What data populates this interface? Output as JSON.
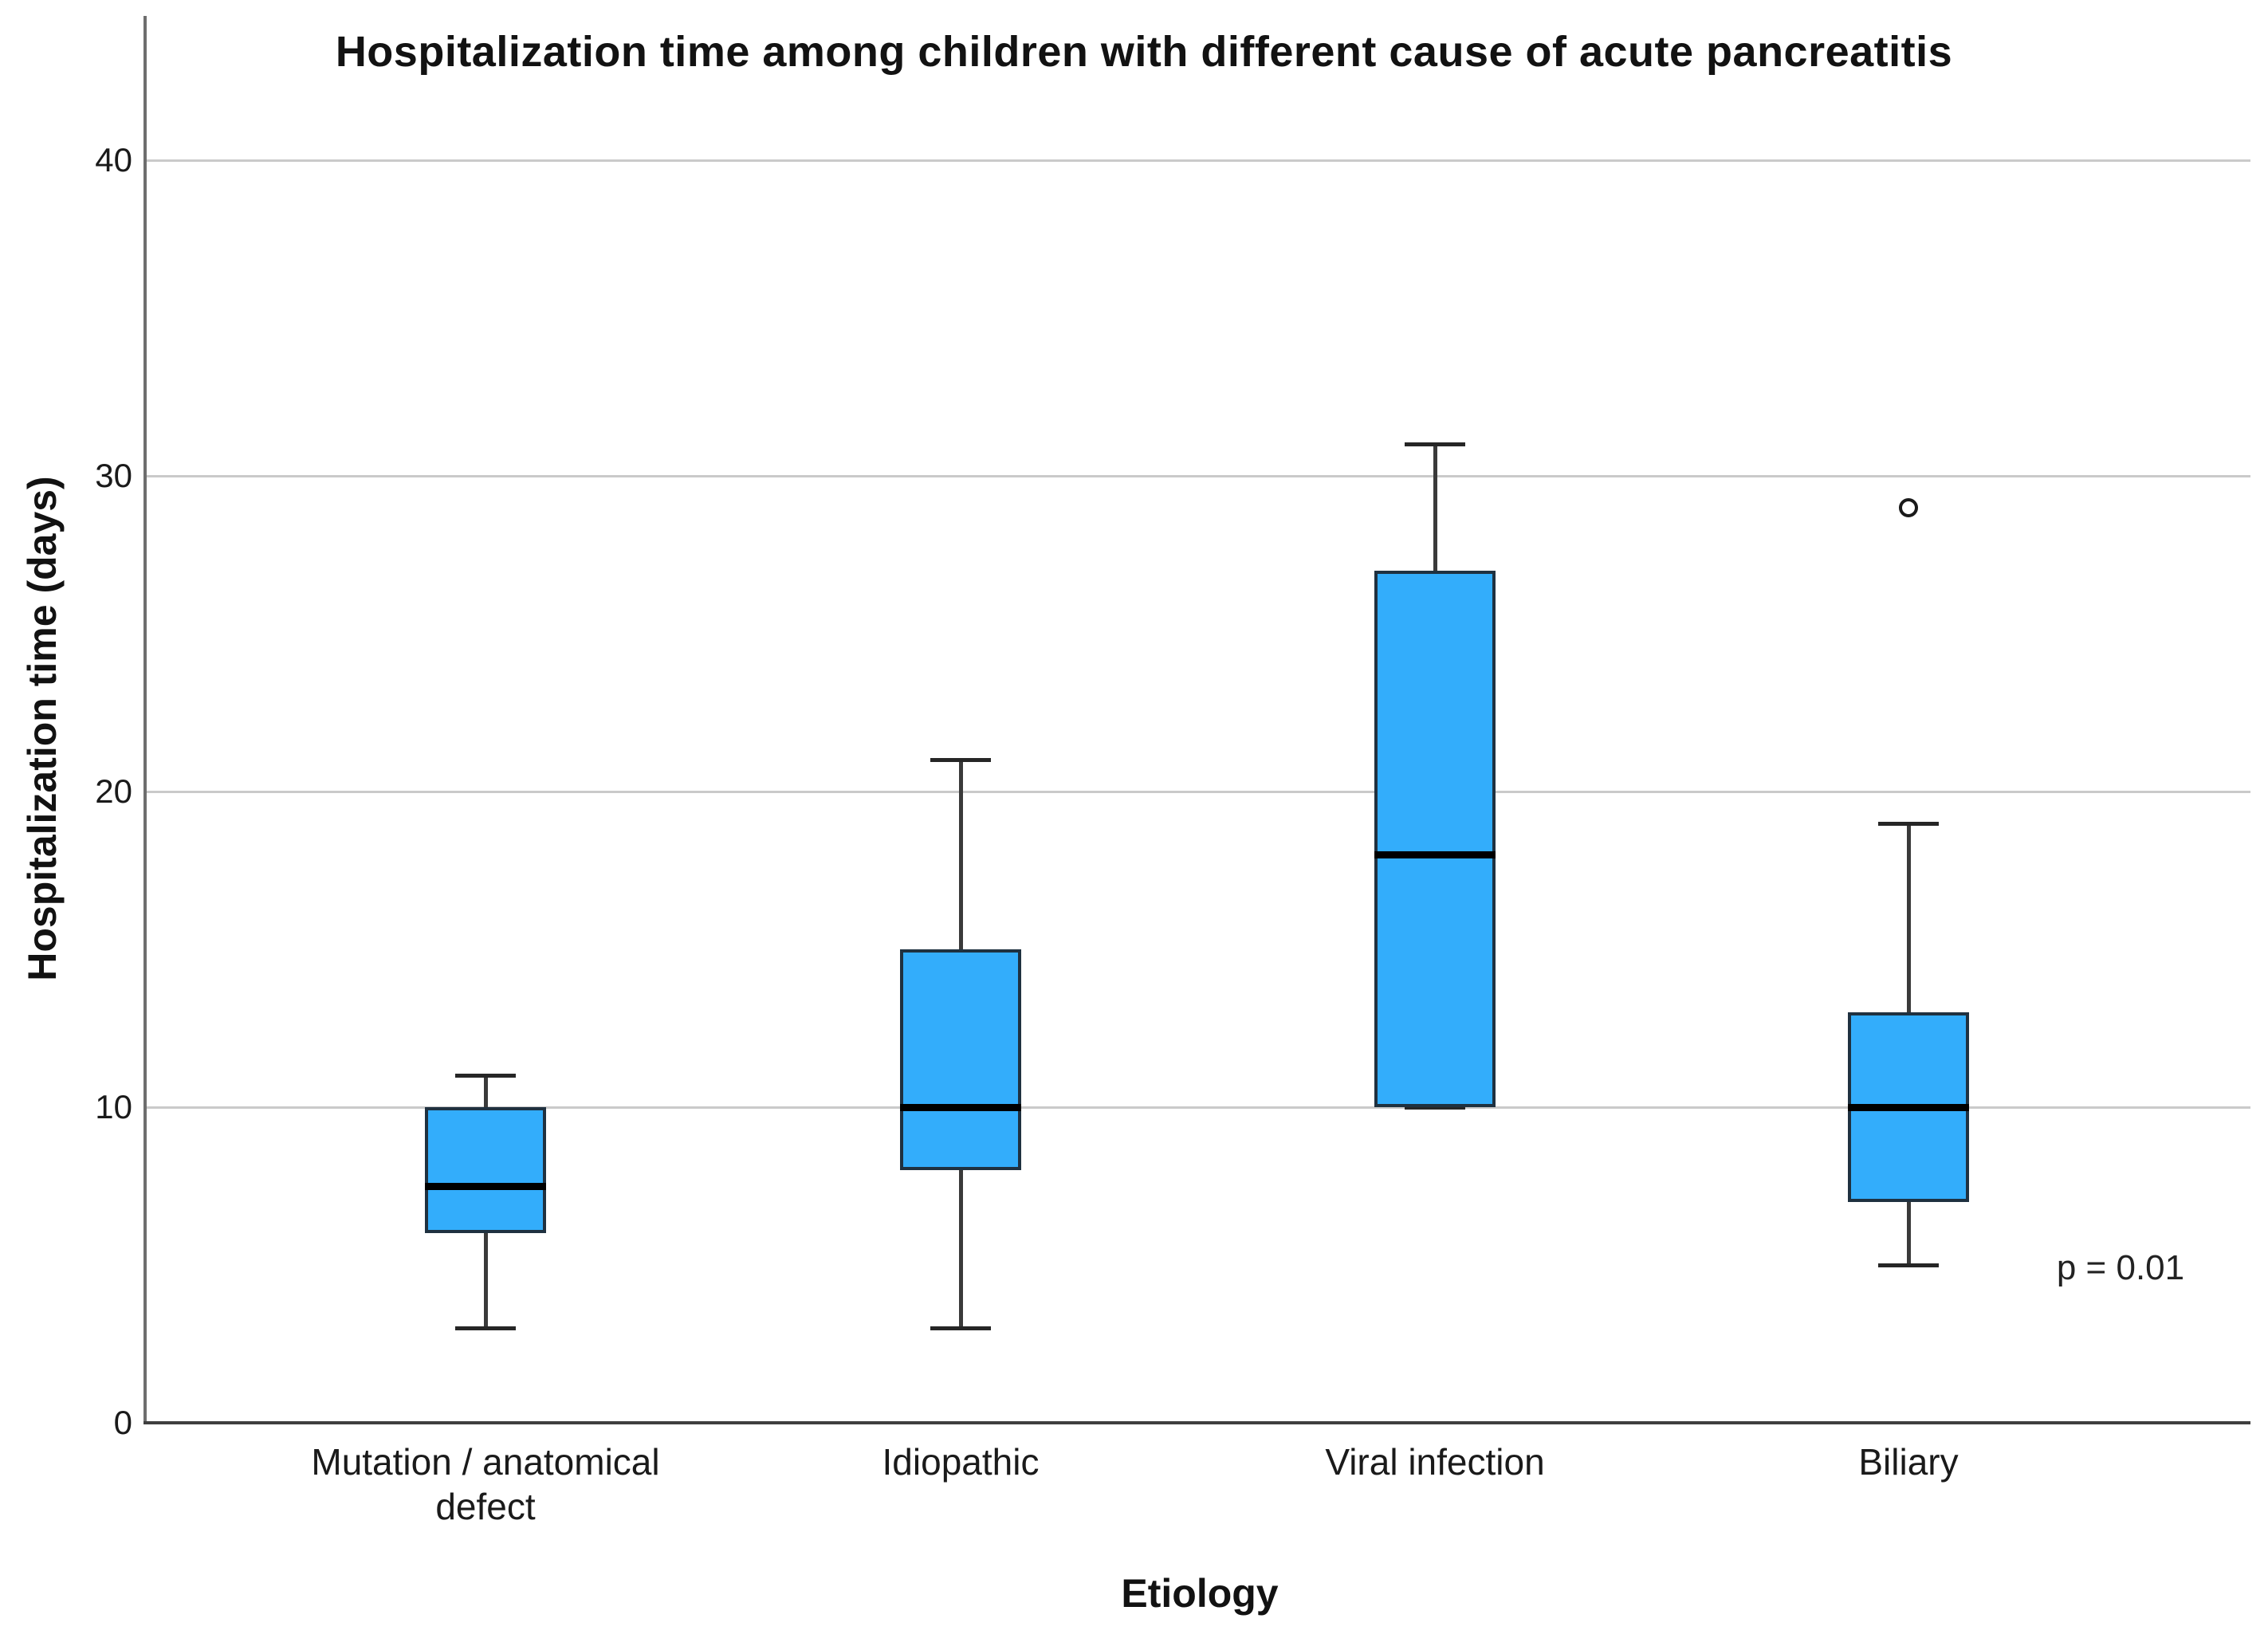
{
  "chart_data": {
    "type": "boxplot",
    "title": "Hospitalization time among children with different cause of acute pancreatitis",
    "xlabel": "Etiology",
    "ylabel": "Hospitalization time (days)",
    "annotation": "p = 0.01",
    "ylim": [
      0,
      45
    ],
    "yticks": [
      0,
      10,
      20,
      30,
      40
    ],
    "grid": "horizontal-only",
    "legend": "none",
    "categories": [
      "Mutation / anatomical defect",
      "Idiopathic",
      "Viral infection",
      "Biliary"
    ],
    "series": [
      {
        "category": "Mutation / anatomical defect",
        "min": 3,
        "q1": 6,
        "median": 7.5,
        "q3": 10,
        "max": 11,
        "outliers": []
      },
      {
        "category": "Idiopathic",
        "min": 3,
        "q1": 8,
        "median": 10,
        "q3": 15,
        "max": 21,
        "outliers": []
      },
      {
        "category": "Viral infection",
        "min": 10,
        "q1": 10,
        "median": 18,
        "q3": 27,
        "max": 31,
        "outliers": []
      },
      {
        "category": "Biliary",
        "min": 5,
        "q1": 7,
        "median": 10,
        "q3": 13,
        "max": 19,
        "outliers": [
          29
        ]
      }
    ],
    "colors": {
      "box_fill": "#33adfb",
      "box_border": "#1f3140",
      "median": "#000000",
      "whisker": "#3a3a3a",
      "gridline": "#cacaca",
      "y_axis": "#6e6e6e",
      "x_axis": "#3f3f3f",
      "text": "#121212"
    }
  }
}
